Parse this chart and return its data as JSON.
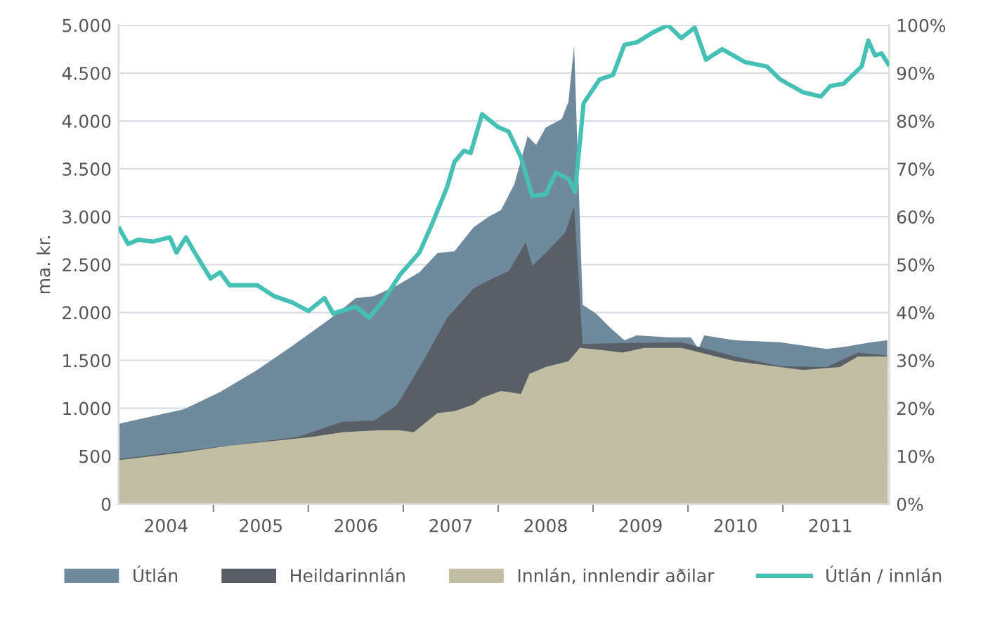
{
  "chart_data": {
    "type": "area",
    "ylabel": "ma. kr.",
    "xlim": [
      2004,
      2012.12
    ],
    "xticks": [
      {
        "value": 2004.5,
        "label": "2004"
      },
      {
        "value": 2005,
        "label": null
      },
      {
        "value": 2005.5,
        "label": "2005"
      },
      {
        "value": 2006,
        "label": null
      },
      {
        "value": 2006.5,
        "label": "2006"
      },
      {
        "value": 2007,
        "label": null
      },
      {
        "value": 2007.5,
        "label": "2007"
      },
      {
        "value": 2008,
        "label": null
      },
      {
        "value": 2008.5,
        "label": "2008"
      },
      {
        "value": 2009,
        "label": null
      },
      {
        "value": 2009.5,
        "label": "2009"
      },
      {
        "value": 2010,
        "label": null
      },
      {
        "value": 2010.5,
        "label": "2010"
      },
      {
        "value": 2011,
        "label": null
      },
      {
        "value": 2011.5,
        "label": "2011"
      }
    ],
    "ylim": [
      0,
      5000
    ],
    "yticks": [
      0,
      500,
      {
        "value": 1000,
        "label": "1.000"
      },
      {
        "value": 1500,
        "label": "1.500"
      },
      {
        "value": 2000,
        "label": "2.000"
      },
      {
        "value": 2500,
        "label": "2.500"
      },
      {
        "value": 3000,
        "label": "3.000"
      },
      {
        "value": 3500,
        "label": "3.500"
      },
      {
        "value": 4000,
        "label": "4.000"
      },
      {
        "value": 4500,
        "label": "4.500"
      },
      {
        "value": 5000,
        "label": "5.000"
      }
    ],
    "y2lim": [
      0,
      100
    ],
    "y2ticks": [
      {
        "value": 0,
        "label": "0%"
      },
      {
        "value": 10,
        "label": "10%"
      },
      {
        "value": 20,
        "label": "20%"
      },
      {
        "value": 30,
        "label": "30%"
      },
      {
        "value": 40,
        "label": "40%"
      },
      {
        "value": 50,
        "label": "50%"
      },
      {
        "value": 60,
        "label": "60%"
      },
      {
        "value": 70,
        "label": "70%"
      },
      {
        "value": 80,
        "label": "80%"
      },
      {
        "value": 90,
        "label": "90%"
      },
      {
        "value": 100,
        "label": "100%"
      }
    ],
    "grid": "y",
    "legend": "bottom",
    "series": [
      {
        "name": "Útlán",
        "color": "#6f8a9c",
        "x": [
          2004.01,
          2004.69,
          2005.07,
          2005.46,
          2005.83,
          2006.21,
          2006.5,
          2006.69,
          2006.93,
          2007.17,
          2007.36,
          2007.54,
          2007.74,
          2007.9,
          2008.03,
          2008.17,
          2008.31,
          2008.4,
          2008.5,
          2008.67,
          2008.74,
          2008.8,
          2008.89,
          2009.03,
          2009.17,
          2009.33,
          2009.46,
          2009.79,
          2010.03,
          2010.11,
          2010.17,
          2010.5,
          2010.97,
          2011.46,
          2011.64,
          2011.93,
          2012.1
        ],
        "values": [
          840,
          990,
          1170,
          1400,
          1650,
          1920,
          2150,
          2170,
          2280,
          2420,
          2620,
          2640,
          2890,
          3000,
          3070,
          3340,
          3840,
          3750,
          3930,
          4020,
          4200,
          4790,
          2080,
          1990,
          1850,
          1710,
          1760,
          1740,
          1740,
          1620,
          1760,
          1710,
          1690,
          1620,
          1640,
          1690,
          1710
        ]
      },
      {
        "name": "Heildarinnlán",
        "color": "#595f66",
        "x": [
          2004.01,
          2005.89,
          2006.36,
          2006.69,
          2006.93,
          2007.21,
          2007.46,
          2007.74,
          2007.93,
          2008.11,
          2008.29,
          2008.36,
          2008.5,
          2008.71,
          2008.8,
          2008.89,
          2009.31,
          2009.93,
          2010.5,
          2010.97,
          2011.46,
          2011.79,
          2012.1
        ],
        "values": [
          470,
          700,
          860,
          870,
          1030,
          1490,
          1940,
          2250,
          2350,
          2430,
          2730,
          2490,
          2620,
          2840,
          3110,
          1670,
          1680,
          1690,
          1540,
          1440,
          1430,
          1580,
          1550
        ]
      },
      {
        "name": "Innlán, innlendir aðilar",
        "color": "#c0bea3",
        "x": [
          2004.01,
          2004.69,
          2005.17,
          2005.64,
          2006.03,
          2006.36,
          2006.74,
          2006.97,
          2007.11,
          2007.36,
          2007.54,
          2007.74,
          2007.83,
          2008.03,
          2008.24,
          2008.33,
          2008.5,
          2008.74,
          2008.86,
          2009.07,
          2009.31,
          2009.54,
          2009.93,
          2010.5,
          2011.21,
          2011.6,
          2011.79,
          2012.1
        ],
        "values": [
          460,
          540,
          610,
          660,
          700,
          750,
          770,
          770,
          750,
          950,
          970,
          1040,
          1110,
          1180,
          1150,
          1360,
          1430,
          1490,
          1630,
          1610,
          1580,
          1630,
          1630,
          1490,
          1400,
          1430,
          1540,
          1540
        ]
      },
      {
        "name": "Útlán / innlán",
        "type": "line",
        "axis": "y2",
        "color": "#45c0b5",
        "x": [
          2004.01,
          2004.1,
          2004.21,
          2004.36,
          2004.54,
          2004.61,
          2004.71,
          2004.83,
          2004.97,
          2005.07,
          2005.17,
          2005.46,
          2005.64,
          2005.83,
          2006.0,
          2006.17,
          2006.26,
          2006.5,
          2006.64,
          2006.79,
          2006.97,
          2007.17,
          2007.31,
          2007.46,
          2007.54,
          2007.64,
          2007.71,
          2007.83,
          2008.0,
          2008.11,
          2008.24,
          2008.36,
          2008.5,
          2008.61,
          2008.74,
          2008.81,
          2008.9,
          2009.07,
          2009.21,
          2009.33,
          2009.46,
          2009.64,
          2009.79,
          2009.93,
          2010.07,
          2010.19,
          2010.36,
          2010.6,
          2010.83,
          2010.97,
          2011.21,
          2011.4,
          2011.5,
          2011.64,
          2011.83,
          2011.9,
          2011.97,
          2012.04,
          2012.11
        ],
        "values": [
          57.5,
          54.3,
          55.2,
          54.8,
          55.7,
          52.5,
          55.7,
          51.6,
          47.1,
          48.4,
          45.7,
          45.7,
          43.4,
          42.1,
          40.3,
          43.0,
          39.8,
          41.2,
          38.9,
          42.5,
          48.0,
          52.5,
          58.8,
          66.1,
          71.5,
          73.8,
          73.3,
          81.4,
          78.7,
          77.8,
          72.4,
          64.3,
          64.7,
          69.2,
          67.9,
          65.2,
          83.7,
          88.7,
          89.6,
          95.9,
          96.4,
          98.6,
          100,
          97.3,
          99.5,
          92.8,
          95.0,
          92.3,
          91.4,
          88.7,
          86.0,
          85.1,
          87.3,
          87.8,
          91.4,
          96.8,
          93.7,
          94.1,
          91.9
        ]
      }
    ]
  }
}
